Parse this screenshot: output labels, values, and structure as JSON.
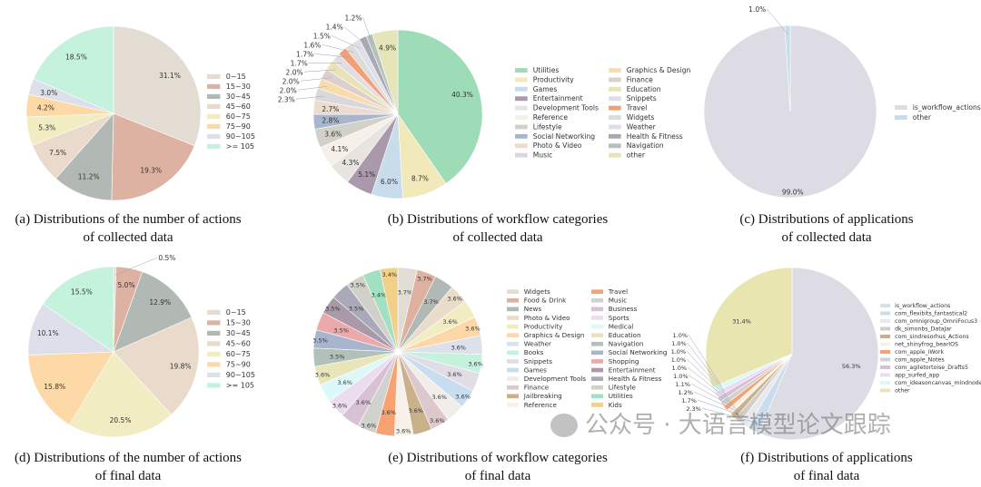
{
  "chart_data": [
    {
      "type": "pie",
      "caption": [
        "(a) Distributions of the number of actions",
        "of collected data"
      ],
      "categories": [
        "0~15",
        "15~30",
        "30~45",
        "45~60",
        "60~75",
        "75~90",
        "90~105",
        ">= 105"
      ],
      "values": [
        31.1,
        19.3,
        11.2,
        7.5,
        5.3,
        4.2,
        3.0,
        18.5
      ],
      "colors": [
        "#e2dcd2",
        "#deb2a2",
        "#b2b9b5",
        "#e9dacb",
        "#f1ecc2",
        "#fdd9a8",
        "#dde0ea",
        "#c4f2dc"
      ],
      "legend": "right"
    },
    {
      "type": "pie",
      "caption": [
        "(b) Distributions of workflow categories",
        "of collected data"
      ],
      "categories": [
        "Utilities",
        "Productivity",
        "Games",
        "Entertainment",
        "Development Tools",
        "Reference",
        "Lifestyle",
        "Social Networking",
        "Photo & Video",
        "Music",
        "Graphics & Design",
        "Finance",
        "Education",
        "Snippets",
        "Travel",
        "Widgets",
        "Weather",
        "Health & Fitness",
        "Navigation",
        "other"
      ],
      "values": [
        40.3,
        8.7,
        6.0,
        5.1,
        4.3,
        4.1,
        3.6,
        2.8,
        2.7,
        2.3,
        2.0,
        2.0,
        2.0,
        1.7,
        1.7,
        1.6,
        1.5,
        1.4,
        1.2,
        4.9
      ],
      "colors": [
        "#9edcb8",
        "#f1e9ba",
        "#c9dcec",
        "#a999aa",
        "#e8e4e0",
        "#f6f0e9",
        "#d1d1c9",
        "#a9b5cd",
        "#ecdcd0",
        "#d9d9dd",
        "#f8dcac",
        "#ddd0cc",
        "#e8e4b8",
        "#e1dde5",
        "#f1a079",
        "#dddcd8",
        "#dde0e9",
        "#a9a9b1",
        "#b5c1bd",
        "#e5e5b9"
      ],
      "legend": "right"
    },
    {
      "type": "pie",
      "caption": [
        "(c) Distributions of applications",
        "of collected data"
      ],
      "categories": [
        "is_workflow_actions",
        "other"
      ],
      "values": [
        99.0,
        1.0
      ],
      "colors": [
        "#dddce5",
        "#c6dcec"
      ],
      "legend": "right"
    },
    {
      "type": "pie",
      "caption": [
        "(d) Distributions of the number of actions",
        "of final data"
      ],
      "categories": [
        "0~15",
        "15~30",
        "30~45",
        "45~60",
        "60~75",
        "75~90",
        "90~105",
        ">= 105"
      ],
      "values": [
        0.5,
        5.0,
        12.9,
        19.8,
        20.5,
        15.8,
        10.1,
        15.5
      ],
      "colors": [
        "#e2dcd2",
        "#deb2a2",
        "#b2b9b5",
        "#e9dacb",
        "#f1ecc2",
        "#fdd9a8",
        "#dde0ea",
        "#c4f2dc"
      ],
      "legend": "right"
    },
    {
      "type": "pie",
      "caption": [
        "(e) Distributions of workflow categories",
        "of final data"
      ],
      "categories": [
        "Widgets",
        "Food & Drink",
        "News",
        "Photo & Video",
        "Productivity",
        "Graphics & Design",
        "Weather",
        "Books",
        "Snippets",
        "Games",
        "Development Tools",
        "Finance",
        "Jailbreaking",
        "Reference",
        "Travel",
        "Music",
        "Business",
        "Sports",
        "Medical",
        "Education",
        "Navigation",
        "Social Networking",
        "Shopping",
        "Entertainment",
        "Health & Fitness",
        "Lifestyle",
        "Utilities",
        "Kids"
      ],
      "values": [
        3.7,
        3.7,
        3.7,
        3.6,
        3.6,
        3.6,
        3.6,
        3.6,
        3.6,
        3.6,
        3.6,
        3.6,
        3.6,
        3.6,
        3.6,
        3.6,
        3.6,
        3.6,
        3.6,
        3.6,
        3.5,
        3.5,
        3.5,
        3.5,
        3.5,
        3.5,
        3.4,
        3.4
      ],
      "colors": [
        "#e1ddd5",
        "#deb0a0",
        "#b1b9b5",
        "#e9dcc9",
        "#f1edc1",
        "#fcd8a8",
        "#dde1ec",
        "#c5f2dd",
        "#e1dde5",
        "#c9ddf0",
        "#f1ede9",
        "#ddc9cd",
        "#c9b189",
        "#f8f1e9",
        "#f8a171",
        "#d1d1cd",
        "#d9c1d5",
        "#ecdcf0",
        "#ddf8f8",
        "#e9e5b9",
        "#b1c1b9",
        "#a9b5cd",
        "#eca9a9",
        "#a999a9",
        "#a9a9b9",
        "#d1d1c9",
        "#a1e1c1",
        "#f1d189"
      ],
      "legend": "right"
    },
    {
      "type": "pie",
      "caption": [
        "(f) Distributions of applications",
        "of final data"
      ],
      "categories": [
        "is_workflow_actions",
        "com_flexibits_fantastical2",
        "com_omnigroup_OmniFocus3",
        "dk_simonbs_DataJar",
        "com_sindresorhus_Actions",
        "net_shinyfrog_bearIOS",
        "com_apple_iWork",
        "com_apple_Notes",
        "com_agiletortoise_Drafts5",
        "app_surfed_app",
        "com_ideasoncanvas_mindnode",
        "other"
      ],
      "values": [
        56.3,
        2.3,
        1.7,
        1.2,
        1.1,
        1.0,
        1.0,
        1.0,
        1.0,
        1.0,
        1.0,
        31.4
      ],
      "colors": [
        "#dddce5",
        "#c9ddec",
        "#e9e9ed",
        "#d1cdc9",
        "#c9b189",
        "#f8f1e9",
        "#f8a171",
        "#d1d1cd",
        "#d9c1d5",
        "#ecdcf0",
        "#ddf8f8",
        "#e9e5b1"
      ],
      "legend": "right"
    }
  ],
  "watermark": "公众号 · 大语言模型论文跟踪"
}
